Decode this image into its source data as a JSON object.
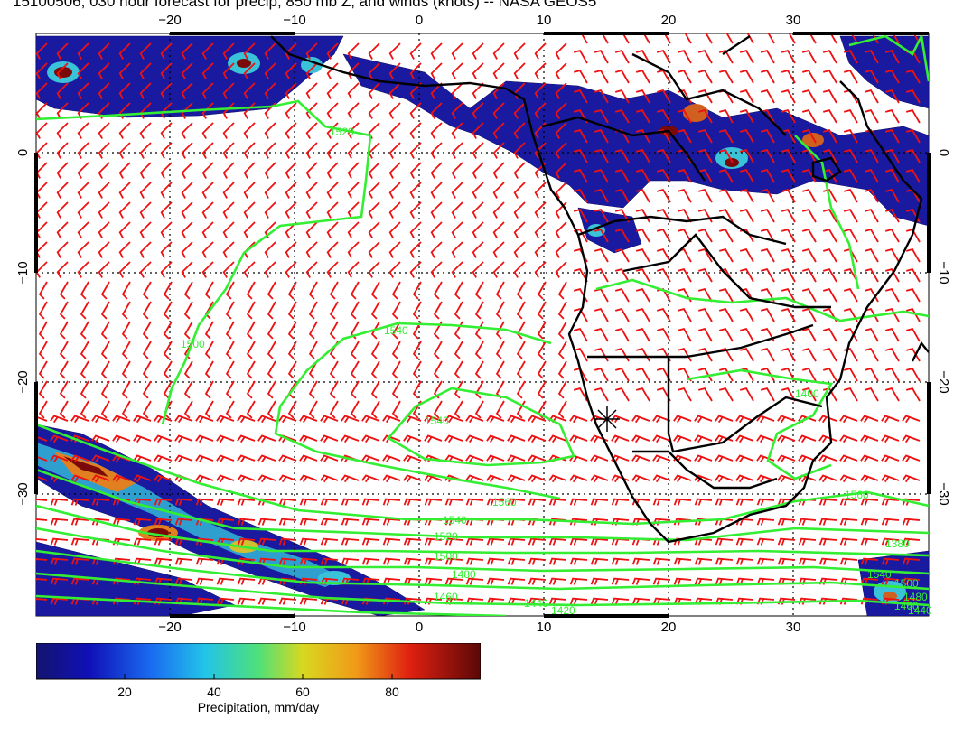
{
  "title": "15100506, 030 hour forecast for precip, 850 mb Z, and winds (knots) -- NASA GEOS5",
  "map": {
    "lon_ticks": [
      "−20",
      "−10",
      "0",
      "10",
      "20",
      "30"
    ],
    "lat_ticks": [
      "0",
      "−10",
      "−20",
      "−30"
    ],
    "contour_labels": [
      "1520",
      "1540",
      "1500",
      "1540",
      "1560",
      "1540",
      "1520",
      "1500",
      "1480",
      "1460",
      "1440",
      "1420",
      "1400",
      "1380",
      "1560",
      "1540",
      "1500",
      "1480",
      "1460",
      "1440"
    ],
    "colors": {
      "contour": "#33ee33",
      "wind": "#ee1111",
      "coast": "#000000",
      "precip_low": "#1a1aa0",
      "precip_high": "#7a0a0a"
    }
  },
  "colorbar": {
    "ticks": [
      "20",
      "40",
      "60",
      "80"
    ],
    "label": "Precipitation, mm/day",
    "range": [
      0,
      100
    ]
  }
}
